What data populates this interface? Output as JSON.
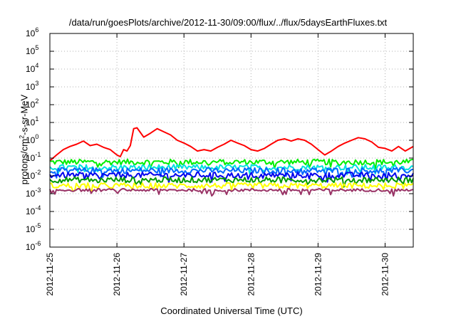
{
  "chart_data": {
    "type": "line",
    "title": "/data/run/goesPlots/archive/2012-11-30/09:00/flux/../flux/5daysEarthFluxes.txt",
    "xlabel": "Coordinated Universal Time (UTC)",
    "ylabel": {
      "prefix": "protons/cm",
      "sup": "2",
      "suffix": "-s-sr-MeV"
    },
    "yscale": "log",
    "ylim": [
      1e-06,
      1000000.0
    ],
    "ytick_exponents": [
      -6,
      -5,
      -4,
      -3,
      -2,
      -1,
      0,
      1,
      2,
      3,
      4,
      5,
      6
    ],
    "ytick_base": "10",
    "x_tick_labels": [
      "2012-11-25",
      "2012-11-26",
      "2012-11-27",
      "2012-11-28",
      "2012-11-29",
      "2012-11-30"
    ],
    "x_tick_days": [
      0,
      1,
      2,
      3,
      4,
      5
    ],
    "xlim_days": [
      0,
      5.42
    ],
    "grid": true,
    "series": [
      {
        "color": "#ff0000",
        "days": [
          0,
          0.1,
          0.2,
          0.3,
          0.4,
          0.5,
          0.6,
          0.7,
          0.8,
          0.9,
          1.0,
          1.05,
          1.1,
          1.15,
          1.2,
          1.25,
          1.3,
          1.4,
          1.5,
          1.6,
          1.7,
          1.8,
          1.9,
          2.0,
          2.1,
          2.2,
          2.3,
          2.4,
          2.5,
          2.6,
          2.7,
          2.8,
          2.9,
          3.0,
          3.1,
          3.2,
          3.3,
          3.4,
          3.5,
          3.6,
          3.7,
          3.8,
          3.9,
          4.0,
          4.1,
          4.2,
          4.3,
          4.4,
          4.5,
          4.6,
          4.7,
          4.8,
          4.9,
          5.0,
          5.1,
          5.2,
          5.3,
          5.42
        ],
        "values": [
          0.07,
          0.15,
          0.3,
          0.45,
          0.6,
          0.9,
          0.5,
          0.6,
          0.4,
          0.3,
          0.15,
          0.12,
          0.3,
          0.25,
          0.5,
          4.5,
          5.0,
          1.5,
          2.5,
          4.5,
          3.0,
          2.0,
          1.0,
          0.7,
          0.45,
          0.25,
          0.3,
          0.25,
          0.4,
          0.6,
          1.0,
          0.7,
          0.5,
          0.3,
          0.25,
          0.35,
          0.6,
          1.0,
          1.2,
          0.9,
          1.2,
          1.0,
          0.6,
          0.3,
          0.15,
          0.25,
          0.45,
          0.7,
          1.0,
          1.4,
          1.2,
          0.8,
          0.4,
          0.35,
          0.25,
          0.45,
          0.25,
          0.45
        ]
      },
      {
        "color": "#00ee00",
        "level": 0.06
      },
      {
        "color": "#00e0e0",
        "level": 0.03
      },
      {
        "color": "#0066ff",
        "level": 0.02
      },
      {
        "color": "#0000ee",
        "level": 0.011
      },
      {
        "color": "#009900",
        "level": 0.006
      },
      {
        "color": "#ffff00",
        "level": 0.0028
      },
      {
        "color": "#993366",
        "level": 0.0016
      }
    ]
  }
}
